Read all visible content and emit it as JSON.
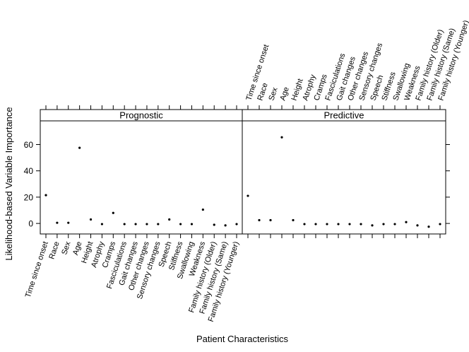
{
  "chart_data": {
    "type": "scatter",
    "ylabel": "Likelihood-based Variable Importance",
    "xlabel": "Patient Characteristics",
    "ylim": [
      -8,
      78
    ],
    "yticks": [
      0,
      20,
      40,
      60
    ],
    "categories": [
      "Time since onset",
      "Race",
      "Sex",
      "Age",
      "Height",
      "Atrophy",
      "Cramps",
      "Fasciculations",
      "Gait changes",
      "Other changes",
      "Sensory changes",
      "Speech",
      "Stiffness",
      "Swallowing",
      "Weakness",
      "Family history (Older)",
      "Family history (Same)",
      "Family history (Younger)"
    ],
    "panels": [
      {
        "name": "Prognostic",
        "values": [
          21.5,
          0.5,
          0.5,
          57.5,
          3,
          -0.5,
          8,
          -0.5,
          -0.5,
          -0.5,
          -0.5,
          3,
          -0.5,
          -0.5,
          10.5,
          -1,
          -1.5,
          -0.5
        ]
      },
      {
        "name": "Predictive",
        "values": [
          21,
          2.5,
          2.5,
          65.5,
          2.5,
          -0.5,
          -0.5,
          -0.5,
          -0.5,
          -0.5,
          -0.5,
          -1.5,
          -0.5,
          -0.5,
          1,
          -1.5,
          -2.5,
          -0.5
        ]
      }
    ]
  }
}
